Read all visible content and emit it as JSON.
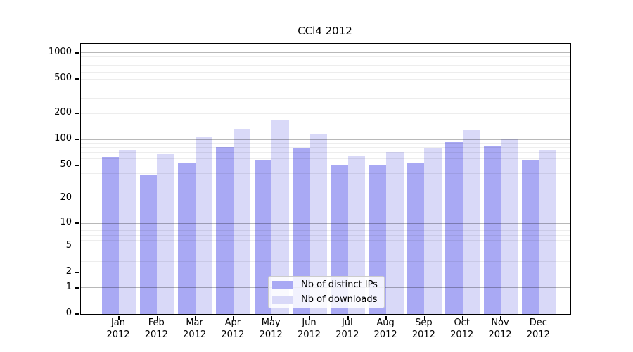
{
  "chart_data": {
    "type": "bar",
    "title": "CCl4 2012",
    "scale": "log10(1+y)",
    "grid": true,
    "legend_position": "lower center",
    "ylim": [
      0,
      1270
    ],
    "yticks": [
      0,
      1,
      2,
      5,
      10,
      20,
      50,
      100,
      200,
      500,
      1000
    ],
    "ytick_labels": [
      "0",
      "1",
      "2",
      "5",
      "10",
      "20",
      "50",
      "100",
      "200",
      "500",
      "1000"
    ],
    "categories": [
      "Jan",
      "Feb",
      "Mar",
      "Apr",
      "May",
      "Jun",
      "Jul",
      "Aug",
      "Sep",
      "Oct",
      "Nov",
      "Dec"
    ],
    "year": "2012",
    "series": [
      {
        "name": "Nb of distinct IPs",
        "color": "#a9a9f4",
        "values": [
          62,
          39,
          53,
          81,
          58,
          80,
          51,
          51,
          54,
          95,
          83,
          58
        ]
      },
      {
        "name": "Nb of downloads",
        "color": "#d9d9f8",
        "values": [
          75,
          67,
          108,
          132,
          165,
          114,
          64,
          71,
          80,
          127,
          100,
          76
        ]
      }
    ]
  }
}
